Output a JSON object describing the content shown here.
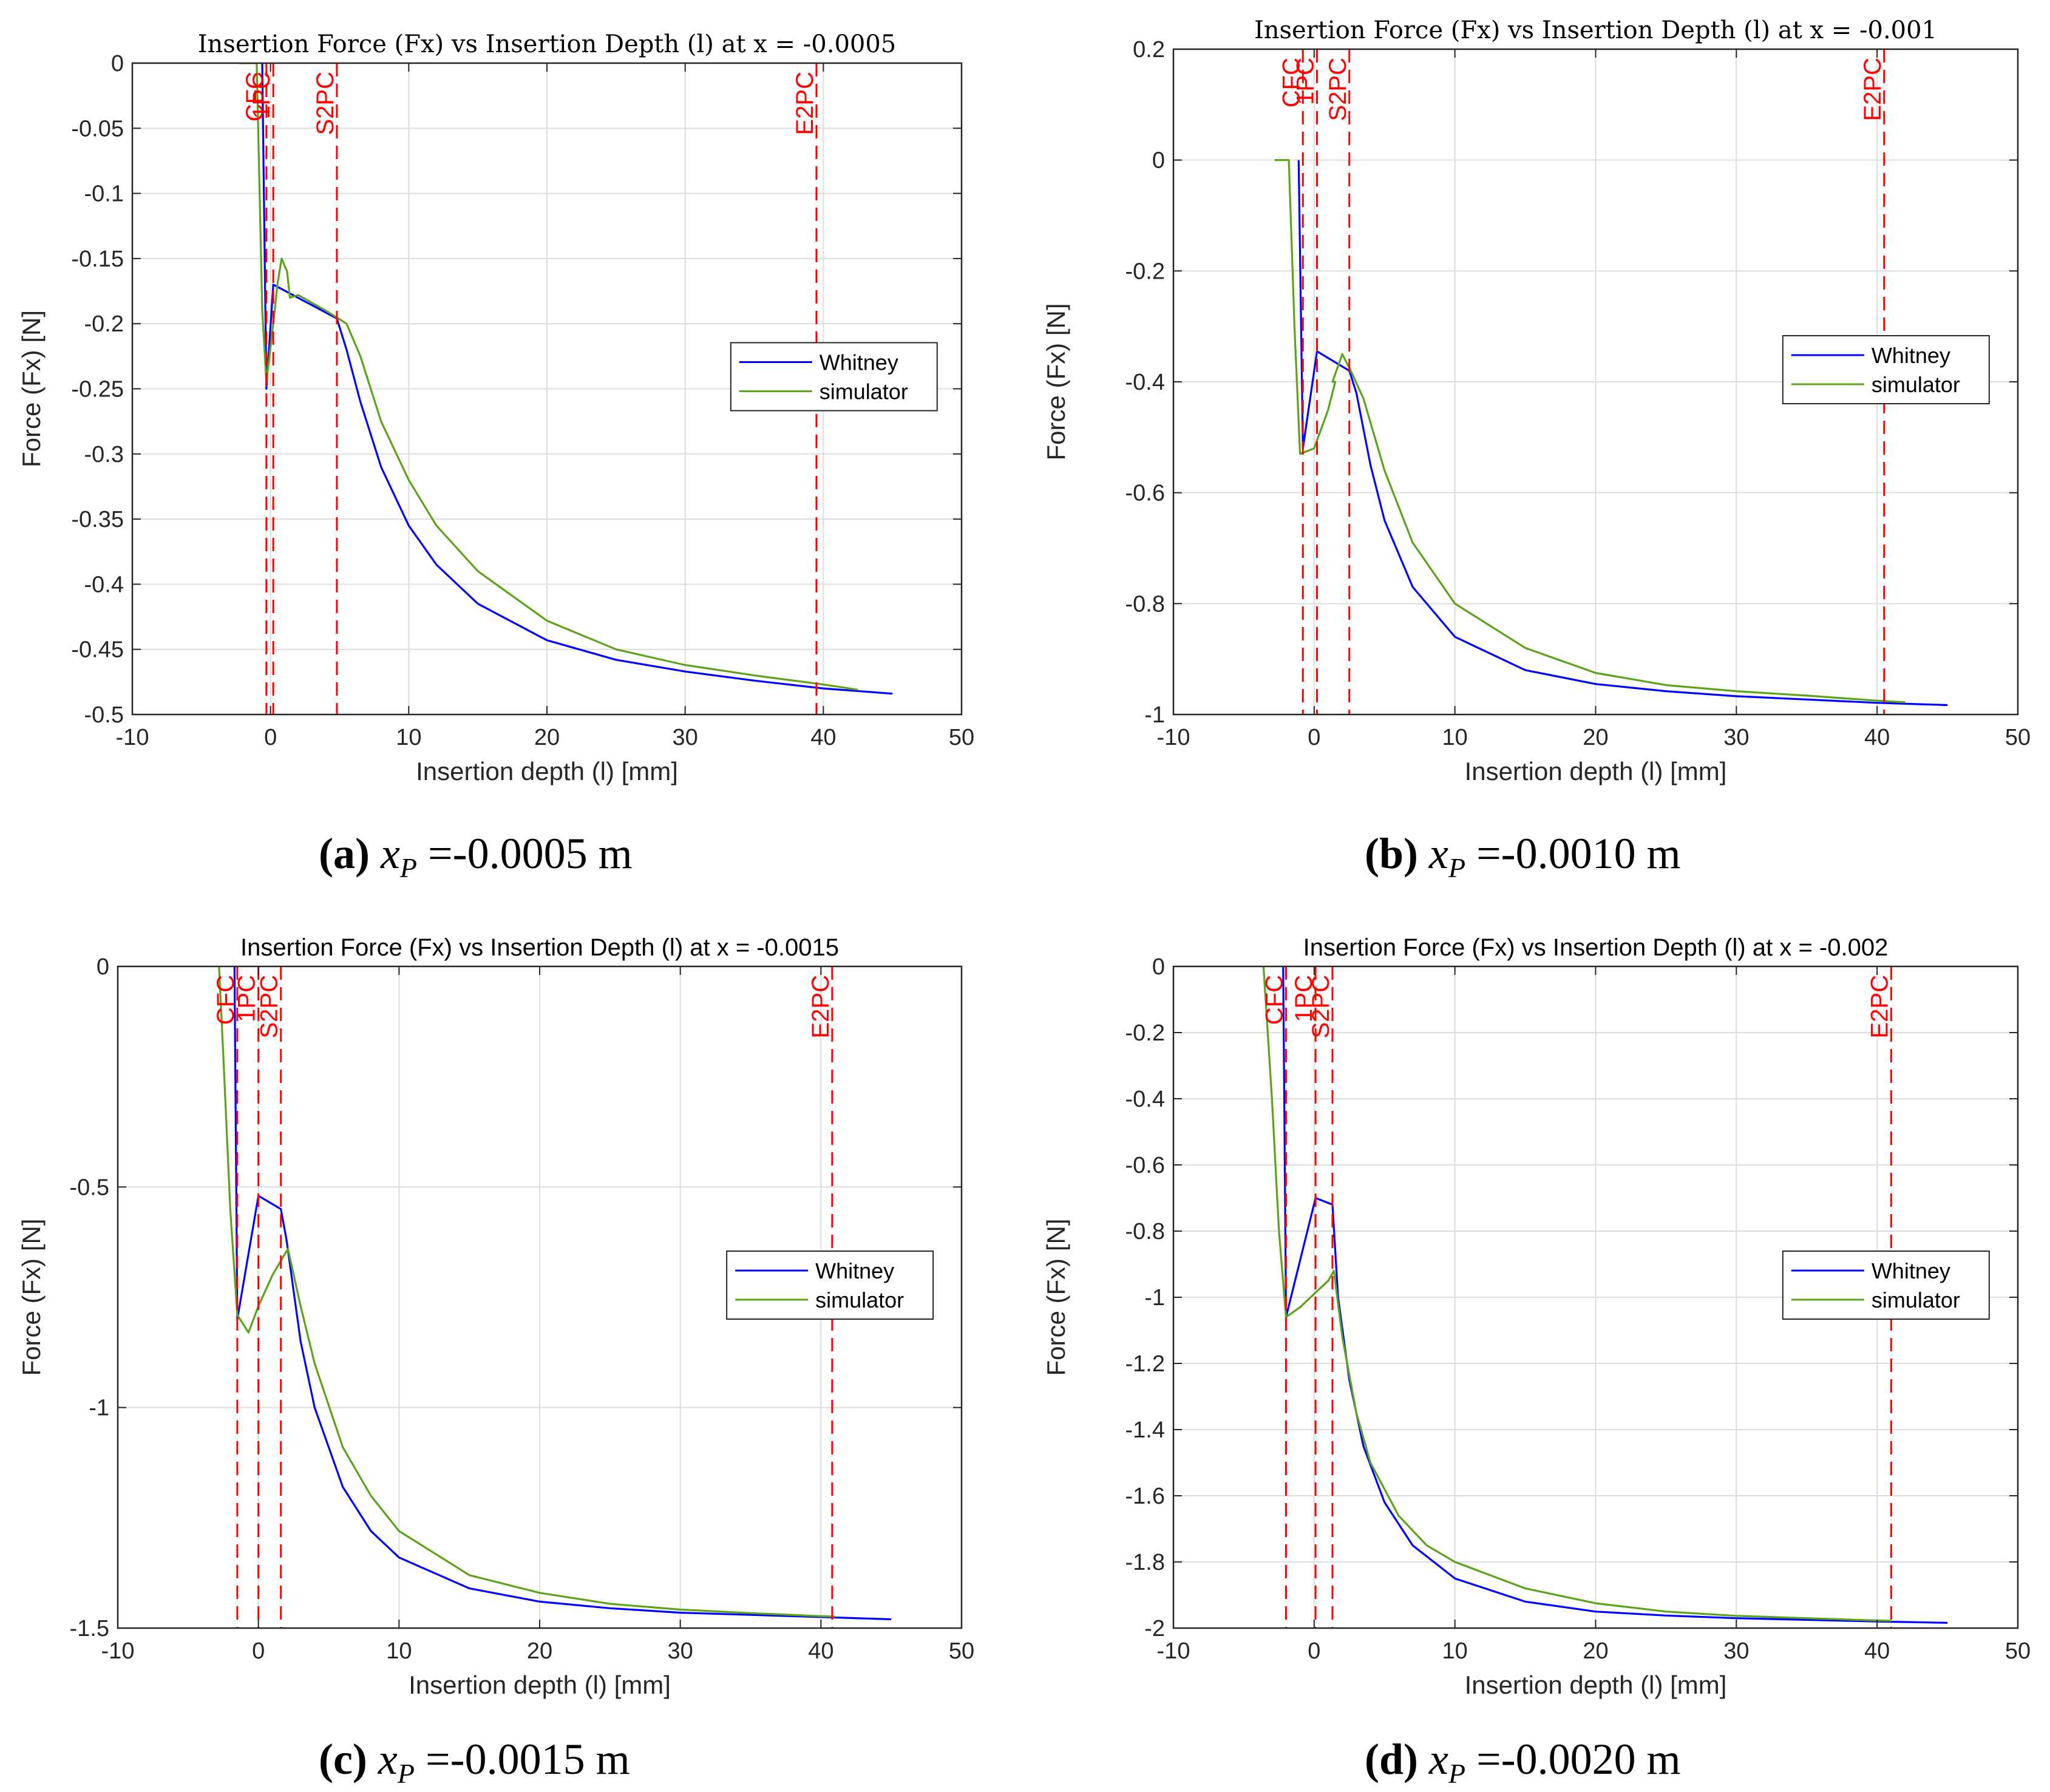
{
  "panels": [
    {
      "caption": {
        "letter": "(a)",
        "var": "x",
        "sub": "P",
        "text": " =-0.0005 m"
      },
      "chart_data": {
        "type": "line",
        "title": "Insertion Force (Fx) vs Insertion Depth (l) at x = -0.0005",
        "xlabel": "Insertion depth (l) [mm]",
        "ylabel": "Force (Fx) [N]",
        "xlim": [
          -10,
          50
        ],
        "ylim": [
          -0.5,
          0
        ],
        "xticks": [
          -10,
          0,
          10,
          20,
          30,
          40,
          50
        ],
        "xtick_labels": [
          "-10",
          "0",
          "10",
          "20",
          "30",
          "40",
          "50"
        ],
        "yticks": [
          0,
          -0.05,
          -0.1,
          -0.15,
          -0.2,
          -0.25,
          -0.3,
          -0.35,
          -0.4,
          -0.45,
          -0.5
        ],
        "ytick_labels": [
          "0",
          "-0.05",
          "-0.1",
          "-0.15",
          "-0.2",
          "-0.25",
          "-0.3",
          "-0.35",
          "-0.4",
          "-0.45",
          "-0.5"
        ],
        "grid": true,
        "legend": {
          "position": "center-right",
          "entries": [
            "Whitney",
            "simulator"
          ]
        },
        "vlines": [
          {
            "label": "CFC",
            "x": -0.3
          },
          {
            "label": "1PC",
            "x": 0.2
          },
          {
            "label": "S2PC",
            "x": 4.8
          },
          {
            "label": "E2PC",
            "x": 39.5
          }
        ],
        "series": [
          {
            "name": "Whitney",
            "color": "#0000ff",
            "points": [
              [
                -0.6,
                0
              ],
              [
                -0.3,
                -0.25
              ],
              [
                0.2,
                -0.17
              ],
              [
                4.8,
                -0.196
              ],
              [
                5.5,
                -0.22
              ],
              [
                6.5,
                -0.26
              ],
              [
                8,
                -0.31
              ],
              [
                10,
                -0.355
              ],
              [
                12,
                -0.385
              ],
              [
                15,
                -0.415
              ],
              [
                20,
                -0.443
              ],
              [
                25,
                -0.458
              ],
              [
                30,
                -0.467
              ],
              [
                35,
                -0.474
              ],
              [
                40,
                -0.48
              ],
              [
                45,
                -0.484
              ]
            ]
          },
          {
            "name": "simulator",
            "color": "#5aa31a",
            "points": [
              [
                -2.3,
                0
              ],
              [
                -1,
                0
              ],
              [
                -0.6,
                -0.19
              ],
              [
                -0.3,
                -0.245
              ],
              [
                0.2,
                -0.2
              ],
              [
                0.5,
                -0.17
              ],
              [
                0.8,
                -0.15
              ],
              [
                1.2,
                -0.16
              ],
              [
                1.4,
                -0.18
              ],
              [
                2,
                -0.178
              ],
              [
                4,
                -0.19
              ],
              [
                5.5,
                -0.2
              ],
              [
                6.5,
                -0.225
              ],
              [
                8,
                -0.275
              ],
              [
                10,
                -0.32
              ],
              [
                12,
                -0.355
              ],
              [
                15,
                -0.39
              ],
              [
                20,
                -0.428
              ],
              [
                25,
                -0.45
              ],
              [
                30,
                -0.462
              ],
              [
                35,
                -0.47
              ],
              [
                40,
                -0.477
              ],
              [
                42.5,
                -0.481
              ]
            ]
          }
        ]
      }
    },
    {
      "caption": {
        "letter": "(b)",
        "var": "x",
        "sub": "P",
        "text": " =-0.0010 m"
      },
      "chart_data": {
        "type": "line",
        "title": "Insertion Force (Fx) vs Insertion Depth (l) at x = -0.001",
        "xlabel": "Insertion depth (l) [mm]",
        "ylabel": "Force (Fx) [N]",
        "xlim": [
          -10,
          50
        ],
        "ylim": [
          -1,
          0.2
        ],
        "xticks": [
          -10,
          0,
          10,
          20,
          30,
          40,
          50
        ],
        "xtick_labels": [
          "-10",
          "0",
          "10",
          "20",
          "30",
          "40",
          "50"
        ],
        "yticks": [
          0.2,
          0,
          -0.2,
          -0.4,
          -0.6,
          -0.8,
          -1
        ],
        "ytick_labels": [
          "0.2",
          "0",
          "-0.2",
          "-0.4",
          "-0.6",
          "-0.8",
          "-1"
        ],
        "grid": true,
        "legend": {
          "position": "center-right",
          "entries": [
            "Whitney",
            "simulator"
          ]
        },
        "vlines": [
          {
            "label": "CFC",
            "x": -0.8
          },
          {
            "label": "1PC",
            "x": 0.2
          },
          {
            "label": "S2PC",
            "x": 2.5
          },
          {
            "label": "E2PC",
            "x": 40.5
          }
        ],
        "series": [
          {
            "name": "Whitney",
            "color": "#0000ff",
            "points": [
              [
                -1.1,
                0
              ],
              [
                -0.8,
                -0.52
              ],
              [
                0.2,
                -0.345
              ],
              [
                2.5,
                -0.38
              ],
              [
                3,
                -0.42
              ],
              [
                4,
                -0.55
              ],
              [
                5,
                -0.65
              ],
              [
                7,
                -0.77
              ],
              [
                10,
                -0.86
              ],
              [
                15,
                -0.92
              ],
              [
                20,
                -0.945
              ],
              [
                25,
                -0.958
              ],
              [
                30,
                -0.967
              ],
              [
                35,
                -0.973
              ],
              [
                40,
                -0.979
              ],
              [
                45,
                -0.983
              ]
            ]
          },
          {
            "name": "simulator",
            "color": "#5aa31a",
            "points": [
              [
                -2.8,
                0
              ],
              [
                -1.8,
                0
              ],
              [
                -1.4,
                -0.3
              ],
              [
                -1,
                -0.53
              ],
              [
                0,
                -0.52
              ],
              [
                1,
                -0.45
              ],
              [
                1.5,
                -0.4
              ],
              [
                1.3,
                -0.4
              ],
              [
                2,
                -0.35
              ],
              [
                2.6,
                -0.38
              ],
              [
                3.5,
                -0.43
              ],
              [
                5,
                -0.56
              ],
              [
                7,
                -0.69
              ],
              [
                10,
                -0.8
              ],
              [
                15,
                -0.88
              ],
              [
                20,
                -0.925
              ],
              [
                25,
                -0.947
              ],
              [
                30,
                -0.958
              ],
              [
                35,
                -0.966
              ],
              [
                40,
                -0.975
              ],
              [
                42,
                -0.978
              ]
            ]
          }
        ]
      }
    },
    {
      "caption": {
        "letter": "(c)",
        "var": "x",
        "sub": "P",
        "text": " =-0.0015 m"
      },
      "chart_data": {
        "type": "line",
        "title": "Insertion Force (Fx) vs Insertion Depth (l) at x = -0.0015",
        "xlabel": "Insertion depth (l) [mm]",
        "ylabel": "Force (Fx) [N]",
        "xlim": [
          -10,
          50
        ],
        "ylim": [
          -1.5,
          0
        ],
        "xticks": [
          -10,
          0,
          10,
          20,
          30,
          40,
          50
        ],
        "xtick_labels": [
          "-10",
          "0",
          "10",
          "20",
          "30",
          "40",
          "50"
        ],
        "yticks": [
          0,
          -0.5,
          -1,
          -1.5
        ],
        "ytick_labels": [
          "0",
          "-0.5",
          "-1",
          "-1.5"
        ],
        "grid": true,
        "legend": {
          "position": "center-right",
          "entries": [
            "Whitney",
            "simulator"
          ]
        },
        "vlines": [
          {
            "label": "CFC",
            "x": -1.5
          },
          {
            "label": "1PC",
            "x": 0
          },
          {
            "label": "S2PC",
            "x": 1.6
          },
          {
            "label": "E2PC",
            "x": 40.8
          }
        ],
        "series": [
          {
            "name": "Whitney",
            "color": "#0000ff",
            "points": [
              [
                -1.7,
                0
              ],
              [
                -1.5,
                -0.8
              ],
              [
                0,
                -0.52
              ],
              [
                1.6,
                -0.55
              ],
              [
                2,
                -0.62
              ],
              [
                3,
                -0.85
              ],
              [
                4,
                -1.0
              ],
              [
                6,
                -1.18
              ],
              [
                8,
                -1.28
              ],
              [
                10,
                -1.34
              ],
              [
                15,
                -1.41
              ],
              [
                20,
                -1.44
              ],
              [
                25,
                -1.455
              ],
              [
                30,
                -1.465
              ],
              [
                35,
                -1.47
              ],
              [
                40,
                -1.475
              ],
              [
                45,
                -1.48
              ]
            ]
          },
          {
            "name": "simulator",
            "color": "#5aa31a",
            "points": [
              [
                -2.8,
                0
              ],
              [
                -2.5,
                -0.2
              ],
              [
                -2,
                -0.55
              ],
              [
                -1.5,
                -0.79
              ],
              [
                -0.7,
                -0.83
              ],
              [
                0,
                -0.77
              ],
              [
                1,
                -0.7
              ],
              [
                2.1,
                -0.64
              ],
              [
                3,
                -0.77
              ],
              [
                4,
                -0.9
              ],
              [
                6,
                -1.09
              ],
              [
                8,
                -1.2
              ],
              [
                10,
                -1.28
              ],
              [
                15,
                -1.38
              ],
              [
                20,
                -1.42
              ],
              [
                25,
                -1.445
              ],
              [
                30,
                -1.458
              ],
              [
                35,
                -1.466
              ],
              [
                40,
                -1.473
              ],
              [
                41,
                -1.474
              ]
            ]
          }
        ]
      }
    },
    {
      "caption": {
        "letter": "(d)",
        "var": "x",
        "sub": "P",
        "text": " =-0.0020 m"
      },
      "chart_data": {
        "type": "line",
        "title": "Insertion Force (Fx) vs Insertion Depth (l) at x = -0.002",
        "xlabel": "Insertion depth (l) [mm]",
        "ylabel": "Force (Fx) [N]",
        "xlim": [
          -10,
          50
        ],
        "ylim": [
          -2,
          0
        ],
        "xticks": [
          -10,
          0,
          10,
          20,
          30,
          40,
          50
        ],
        "xtick_labels": [
          "-10",
          "0",
          "10",
          "20",
          "30",
          "40",
          "50"
        ],
        "yticks": [
          0,
          -0.2,
          -0.4,
          -0.6,
          -0.8,
          -1,
          -1.2,
          -1.4,
          -1.6,
          -1.8,
          -2
        ],
        "ytick_labels": [
          "0",
          "-0.2",
          "-0.4",
          "-0.6",
          "-0.8",
          "-1",
          "-1.2",
          "-1.4",
          "-1.6",
          "-1.8",
          "-2"
        ],
        "grid": true,
        "legend": {
          "position": "center-right",
          "entries": [
            "Whitney",
            "simulator"
          ]
        },
        "vlines": [
          {
            "label": "CFC",
            "x": -2
          },
          {
            "label": "1PC",
            "x": 0.1
          },
          {
            "label": "S2PC",
            "x": 1.3
          },
          {
            "label": "E2PC",
            "x": 41
          }
        ],
        "series": [
          {
            "name": "Whitney",
            "color": "#0000ff",
            "points": [
              [
                -2.2,
                0
              ],
              [
                -2,
                -1.06
              ],
              [
                0.1,
                -0.7
              ],
              [
                1.3,
                -0.72
              ],
              [
                1.7,
                -1.0
              ],
              [
                2.5,
                -1.25
              ],
              [
                3.5,
                -1.45
              ],
              [
                5,
                -1.62
              ],
              [
                7,
                -1.75
              ],
              [
                10,
                -1.85
              ],
              [
                15,
                -1.92
              ],
              [
                20,
                -1.95
              ],
              [
                25,
                -1.962
              ],
              [
                30,
                -1.97
              ],
              [
                35,
                -1.975
              ],
              [
                40,
                -1.98
              ],
              [
                45,
                -1.984
              ]
            ]
          },
          {
            "name": "simulator",
            "color": "#5aa31a",
            "points": [
              [
                -3.6,
                0
              ],
              [
                -3,
                -0.4
              ],
              [
                -2.5,
                -0.8
              ],
              [
                -2,
                -1.06
              ],
              [
                -1,
                -1.03
              ],
              [
                0,
                -0.99
              ],
              [
                1,
                -0.95
              ],
              [
                1.4,
                -0.92
              ],
              [
                2,
                -1.12
              ],
              [
                3,
                -1.35
              ],
              [
                4,
                -1.5
              ],
              [
                6,
                -1.66
              ],
              [
                8,
                -1.75
              ],
              [
                10,
                -1.8
              ],
              [
                15,
                -1.88
              ],
              [
                20,
                -1.925
              ],
              [
                25,
                -1.95
              ],
              [
                30,
                -1.963
              ],
              [
                35,
                -1.97
              ],
              [
                40,
                -1.977
              ],
              [
                41,
                -1.978
              ]
            ]
          }
        ]
      }
    }
  ]
}
